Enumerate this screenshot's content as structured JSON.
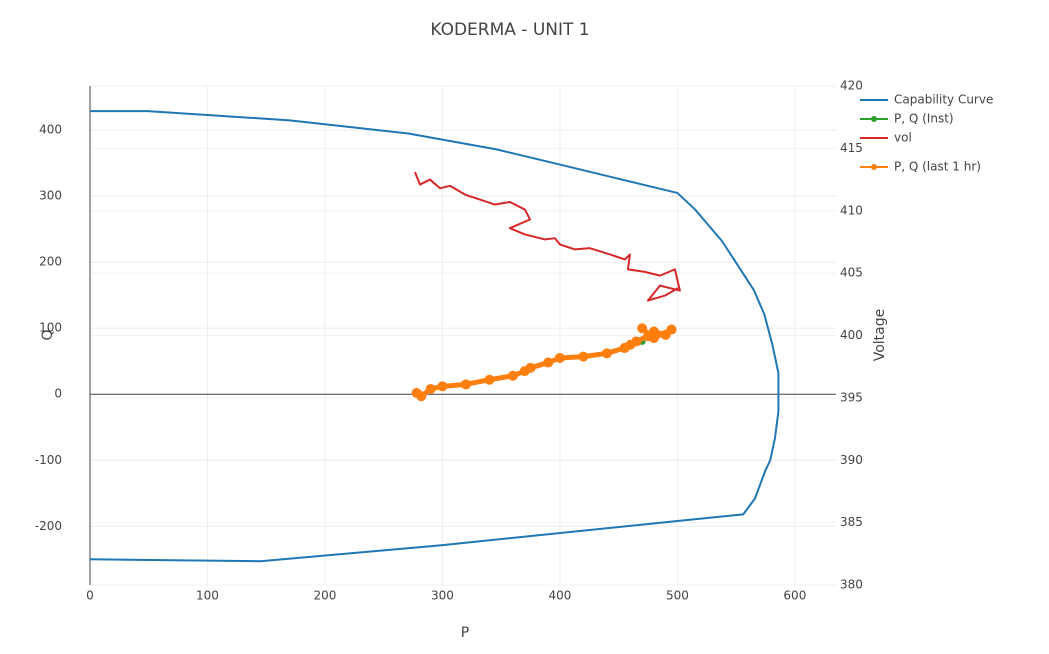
{
  "chart_data": {
    "type": "line",
    "title": "KODERMA  - UNIT 1",
    "x_label": "P",
    "y_label": "Q",
    "y2_label": "Voltage",
    "xlim": [
      0,
      635
    ],
    "ylim": [
      -289,
      467
    ],
    "y2lim": [
      380,
      420
    ],
    "xticks": [
      0,
      100,
      200,
      300,
      400,
      500,
      600
    ],
    "yticks": [
      -200,
      -100,
      0,
      100,
      200,
      300,
      400
    ],
    "y2ticks": [
      380,
      385,
      390,
      395,
      400,
      405,
      410,
      415,
      420
    ],
    "grid": true,
    "legend": "top-right",
    "series": [
      {
        "name": "Capability Curve",
        "color": "#1f77b4",
        "mode": "lines",
        "x": [
          0,
          49,
          170,
          271,
          346,
          400,
          458,
          500,
          515,
          538,
          565,
          574,
          581,
          586,
          586,
          583,
          579,
          575,
          566,
          556,
          500,
          298,
          145,
          0
        ],
        "values": [
          429,
          429,
          415,
          395,
          371,
          348,
          323,
          305,
          280,
          232,
          158,
          121,
          74,
          32,
          -26,
          -67,
          -100,
          -115,
          -158,
          -182,
          -192,
          -229,
          -253,
          -250
        ]
      },
      {
        "name": "P, Q (Inst)",
        "color": "#2ca02c",
        "mode": "markers",
        "x": [
          470
        ],
        "values": [
          80
        ]
      },
      {
        "name": "vol",
        "color": "#d62728",
        "mode": "lines",
        "axis": "y2",
        "x": [
          276.6,
          280.9,
          289.4,
          297.9,
          306.4,
          319.1,
          331.9,
          344.7,
          357.4,
          370.2,
          374.5,
          357.4,
          370.2,
          387.2,
          395.7,
          400,
          412.8,
          425.5,
          442.6,
          455.3,
          459.6,
          457.9,
          472.3,
          485.1,
          497.9,
          502.1,
          485.1,
          474.9,
          489.4,
          500.4
        ],
        "values": [
          413.1,
          412.1,
          412.5,
          411.8,
          412.0,
          411.3,
          410.9,
          410.5,
          410.7,
          410.1,
          409.3,
          408.6,
          408.1,
          407.7,
          407.8,
          407.3,
          406.9,
          407.0,
          406.5,
          406.1,
          406.5,
          405.3,
          405.1,
          404.8,
          405.3,
          403.6,
          404.0,
          402.8,
          403.2,
          403.8
        ]
      },
      {
        "name": "P, Q (last 1 hr)",
        "color": "#ff7f0e",
        "mode": "lines+markers",
        "x": [
          278,
          282,
          290,
          300,
          320,
          340,
          360,
          370,
          375,
          390,
          400,
          420,
          440,
          455,
          460,
          465,
          475,
          480,
          490,
          495,
          480,
          470
        ],
        "values": [
          2,
          -3,
          8,
          12,
          15,
          22,
          28,
          35,
          40,
          48,
          55,
          57,
          62,
          70,
          75,
          80,
          88,
          95,
          90,
          98,
          85,
          100
        ]
      }
    ]
  }
}
